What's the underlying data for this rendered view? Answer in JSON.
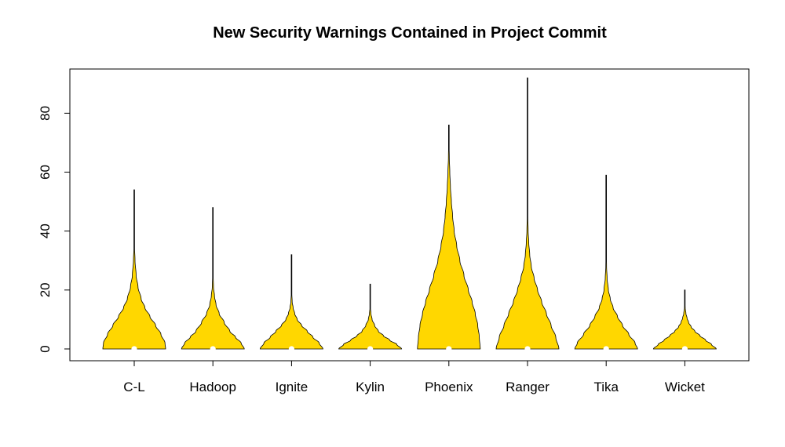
{
  "chart_data": {
    "type": "violin",
    "title": "New Security Warnings Contained in Project Commit",
    "xlabel": "",
    "ylabel": "",
    "categories": [
      "C-L",
      "Hadoop",
      "Ignite",
      "Kylin",
      "Phoenix",
      "Ranger",
      "Tika",
      "Wicket"
    ],
    "yticks": [
      0,
      20,
      40,
      60,
      80
    ],
    "ylim": [
      -4,
      95
    ],
    "fill_color": "#FFD700",
    "median_color": "#FFFFFF",
    "series": [
      {
        "category": "C-L",
        "min": 0,
        "max": 54,
        "median": 0,
        "profile": [
          [
            0,
            1.0
          ],
          [
            2,
            0.98
          ],
          [
            5,
            0.85
          ],
          [
            8,
            0.68
          ],
          [
            11,
            0.5
          ],
          [
            14,
            0.34
          ],
          [
            17,
            0.22
          ],
          [
            21,
            0.12
          ],
          [
            25,
            0.06
          ],
          [
            30,
            0.025
          ],
          [
            35,
            0.008
          ],
          [
            40,
            0.004
          ],
          [
            54,
            0.002
          ]
        ]
      },
      {
        "category": "Hadoop",
        "min": 0,
        "max": 48,
        "median": 0,
        "profile": [
          [
            0,
            1.0
          ],
          [
            2,
            0.9
          ],
          [
            4,
            0.72
          ],
          [
            6,
            0.54
          ],
          [
            9,
            0.36
          ],
          [
            12,
            0.2
          ],
          [
            15,
            0.1
          ],
          [
            18,
            0.05
          ],
          [
            21,
            0.02
          ],
          [
            25,
            0.008
          ],
          [
            30,
            0.004
          ],
          [
            48,
            0.002
          ]
        ]
      },
      {
        "category": "Ignite",
        "min": 0,
        "max": 32,
        "median": 0,
        "profile": [
          [
            0,
            1.0
          ],
          [
            2,
            0.88
          ],
          [
            4,
            0.68
          ],
          [
            6,
            0.5
          ],
          [
            8,
            0.32
          ],
          [
            10,
            0.18
          ],
          [
            12,
            0.1
          ],
          [
            14,
            0.05
          ],
          [
            16,
            0.02
          ],
          [
            19,
            0.008
          ],
          [
            22,
            0.004
          ],
          [
            32,
            0.002
          ]
        ]
      },
      {
        "category": "Kylin",
        "min": 0,
        "max": 22,
        "median": 0,
        "profile": [
          [
            0,
            1.0
          ],
          [
            1.5,
            0.85
          ],
          [
            3,
            0.62
          ],
          [
            4.5,
            0.42
          ],
          [
            6,
            0.26
          ],
          [
            8,
            0.14
          ],
          [
            10,
            0.06
          ],
          [
            12,
            0.025
          ],
          [
            14,
            0.008
          ],
          [
            17,
            0.004
          ],
          [
            22,
            0.002
          ]
        ]
      },
      {
        "category": "Phoenix",
        "min": 0,
        "max": 76,
        "median": 0,
        "profile": [
          [
            0,
            1.0
          ],
          [
            4,
            0.97
          ],
          [
            8,
            0.92
          ],
          [
            12,
            0.84
          ],
          [
            16,
            0.74
          ],
          [
            20,
            0.62
          ],
          [
            25,
            0.48
          ],
          [
            30,
            0.35
          ],
          [
            35,
            0.25
          ],
          [
            40,
            0.17
          ],
          [
            45,
            0.12
          ],
          [
            50,
            0.08
          ],
          [
            55,
            0.05
          ],
          [
            60,
            0.03
          ],
          [
            65,
            0.014
          ],
          [
            70,
            0.006
          ],
          [
            76,
            0.002
          ]
        ]
      },
      {
        "category": "Ranger",
        "min": 0,
        "max": 92,
        "median": 0,
        "profile": [
          [
            0,
            1.0
          ],
          [
            4,
            0.9
          ],
          [
            8,
            0.75
          ],
          [
            12,
            0.6
          ],
          [
            16,
            0.45
          ],
          [
            20,
            0.32
          ],
          [
            24,
            0.21
          ],
          [
            28,
            0.12
          ],
          [
            32,
            0.07
          ],
          [
            36,
            0.04
          ],
          [
            40,
            0.02
          ],
          [
            45,
            0.01
          ],
          [
            50,
            0.005
          ],
          [
            60,
            0.003
          ],
          [
            92,
            0.002
          ]
        ]
      },
      {
        "category": "Tika",
        "min": 0,
        "max": 59,
        "median": 0,
        "profile": [
          [
            0,
            1.0
          ],
          [
            2,
            0.92
          ],
          [
            5,
            0.72
          ],
          [
            8,
            0.52
          ],
          [
            11,
            0.36
          ],
          [
            14,
            0.22
          ],
          [
            17,
            0.13
          ],
          [
            20,
            0.07
          ],
          [
            24,
            0.03
          ],
          [
            28,
            0.012
          ],
          [
            32,
            0.006
          ],
          [
            40,
            0.003
          ],
          [
            59,
            0.002
          ]
        ]
      },
      {
        "category": "Wicket",
        "min": 0,
        "max": 20,
        "median": 0,
        "profile": [
          [
            0,
            1.0
          ],
          [
            1.5,
            0.85
          ],
          [
            3,
            0.66
          ],
          [
            4.5,
            0.48
          ],
          [
            6,
            0.32
          ],
          [
            7.5,
            0.2
          ],
          [
            9,
            0.12
          ],
          [
            10.5,
            0.07
          ],
          [
            12,
            0.035
          ],
          [
            14,
            0.012
          ],
          [
            16,
            0.005
          ],
          [
            20,
            0.002
          ]
        ]
      }
    ]
  }
}
